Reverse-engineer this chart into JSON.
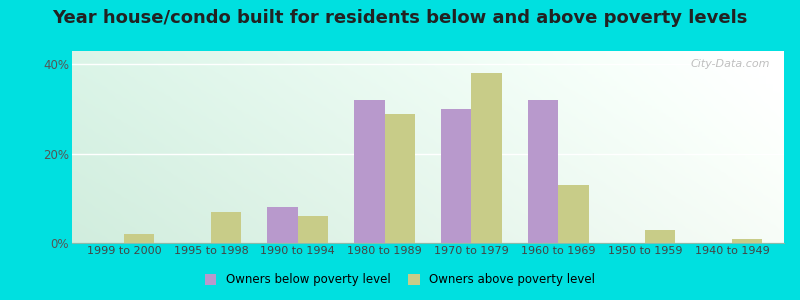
{
  "title": "Year house/condo built for residents below and above poverty levels",
  "categories": [
    "1999 to 2000",
    "1995 to 1998",
    "1990 to 1994",
    "1980 to 1989",
    "1970 to 1979",
    "1960 to 1969",
    "1950 to 1959",
    "1940 to 1949"
  ],
  "below_poverty": [
    0,
    0,
    8,
    32,
    30,
    32,
    0,
    0
  ],
  "above_poverty": [
    2,
    7,
    6,
    29,
    38,
    13,
    3,
    1
  ],
  "below_color": "#b899cc",
  "above_color": "#c8cc88",
  "ylabel_ticks": [
    0,
    20,
    40
  ],
  "ylim": [
    0,
    43
  ],
  "bg_topleft": "#d8ede0",
  "bg_topright": "#e8f5ee",
  "bg_bottomleft": "#d0eedd",
  "bg_bottomright": "#f0faf0",
  "outer_bg": "#00e0e0",
  "legend_below": "Owners below poverty level",
  "legend_above": "Owners above poverty level",
  "title_fontsize": 13,
  "watermark": "City-Data.com"
}
